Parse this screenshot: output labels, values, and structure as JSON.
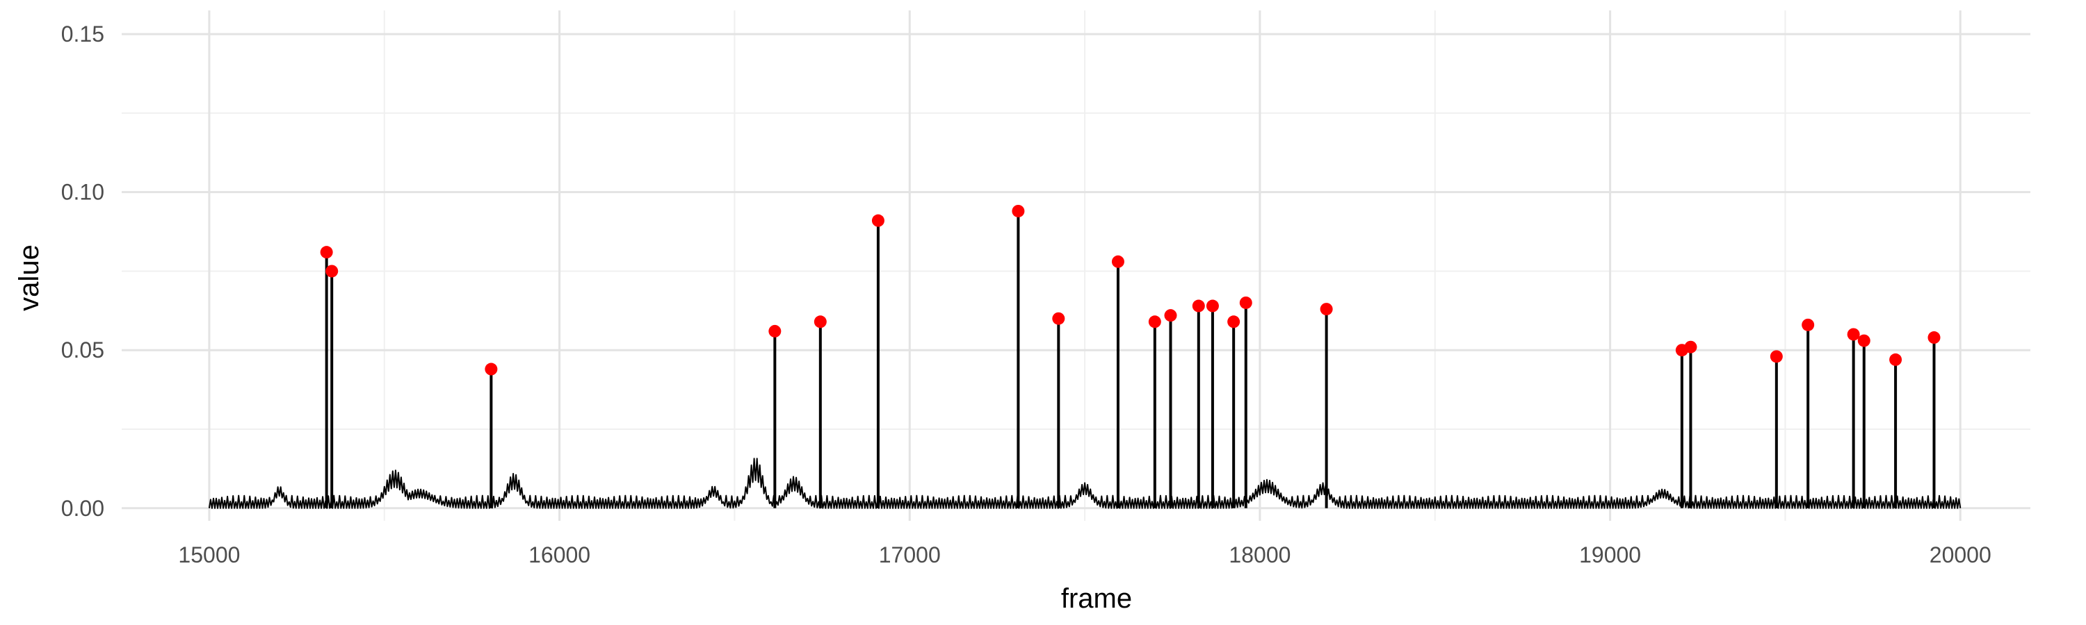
{
  "chart_data": {
    "type": "line",
    "title": "",
    "xlabel": "frame",
    "ylabel": "value",
    "xlim": [
      14750,
      20200
    ],
    "ylim": [
      -0.004,
      0.1575
    ],
    "x_ticks": [
      15000,
      16000,
      17000,
      18000,
      19000,
      20000
    ],
    "x_tick_labels": [
      "15000",
      "16000",
      "17000",
      "18000",
      "19000",
      "20000"
    ],
    "y_ticks": [
      0.0,
      0.05,
      0.1,
      0.15
    ],
    "y_tick_labels": [
      "0.00",
      "0.05",
      "0.10",
      "0.15"
    ],
    "x_minor_ticks": [
      15500,
      16500,
      17500,
      18500,
      19500
    ],
    "y_minor_ticks": [
      0.025,
      0.075,
      0.125
    ],
    "grid": true,
    "legend": "none",
    "baseline": {
      "x_start": 15000,
      "x_end": 20000,
      "flicker_max": 0.004,
      "bumps": [
        {
          "x": 15200,
          "width": 20,
          "height": 0.007
        },
        {
          "x": 15530,
          "width": 40,
          "height": 0.012
        },
        {
          "x": 15600,
          "width": 60,
          "height": 0.006
        },
        {
          "x": 15870,
          "width": 30,
          "height": 0.011
        },
        {
          "x": 16440,
          "width": 25,
          "height": 0.007
        },
        {
          "x": 16560,
          "width": 30,
          "height": 0.016
        },
        {
          "x": 16670,
          "width": 35,
          "height": 0.01
        },
        {
          "x": 17500,
          "width": 30,
          "height": 0.008
        },
        {
          "x": 18020,
          "width": 50,
          "height": 0.009
        },
        {
          "x": 18180,
          "width": 30,
          "height": 0.008
        },
        {
          "x": 19150,
          "width": 40,
          "height": 0.006
        }
      ]
    },
    "peaks": {
      "color": "#ff0000",
      "x": [
        15335,
        15350,
        15805,
        16615,
        16745,
        16910,
        17310,
        17425,
        17595,
        17700,
        17745,
        17825,
        17865,
        17925,
        17960,
        18190,
        19205,
        19230,
        19475,
        19565,
        19695,
        19725,
        19815,
        19925
      ],
      "y": [
        0.081,
        0.075,
        0.044,
        0.056,
        0.059,
        0.091,
        0.094,
        0.06,
        0.078,
        0.059,
        0.061,
        0.064,
        0.064,
        0.059,
        0.065,
        0.063,
        0.05,
        0.051,
        0.048,
        0.058,
        0.055,
        0.053,
        0.047,
        0.054
      ]
    }
  }
}
